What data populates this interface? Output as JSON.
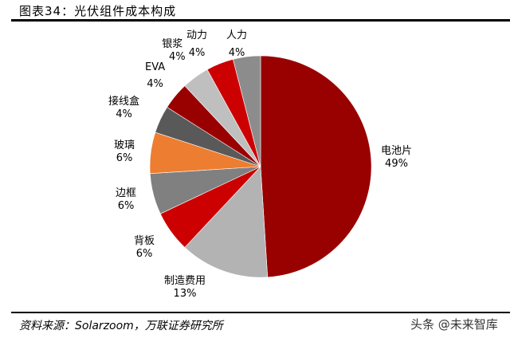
{
  "header": {
    "title": "图表34：光伏组件成本构成"
  },
  "footer": {
    "source": "资料来源：Solarzoom，万联证券研究所",
    "watermark": "头条 @未来智库"
  },
  "chart_data": {
    "type": "pie",
    "title": "光伏组件成本构成",
    "start_angle": "12 o'clock, clockwise",
    "slices": [
      {
        "label": "电池片",
        "value": 49,
        "pct": "49%",
        "color": "#990000"
      },
      {
        "label": "制造费用",
        "value": 13,
        "pct": "13%",
        "color": "#B3B3B3"
      },
      {
        "label": "背板",
        "value": 6,
        "pct": "6%",
        "color": "#CC0000"
      },
      {
        "label": "边框",
        "value": 6,
        "pct": "6%",
        "color": "#808080"
      },
      {
        "label": "玻璃",
        "value": 6,
        "pct": "6%",
        "color": "#ED7D31"
      },
      {
        "label": "接线盒",
        "value": 4,
        "pct": "4%",
        "color": "#595959"
      },
      {
        "label": "EVA",
        "value": 4,
        "pct": "4%",
        "color": "#990000"
      },
      {
        "label": "银浆",
        "value": 4,
        "pct": "4%",
        "color": "#BFBFBF"
      },
      {
        "label": "动力",
        "value": 4,
        "pct": "4%",
        "color": "#CC0000"
      },
      {
        "label": "人力",
        "value": 4,
        "pct": "4%",
        "color": "#8C8C8C"
      }
    ],
    "legend": "none (data labels beside slices)",
    "unit": "%"
  }
}
